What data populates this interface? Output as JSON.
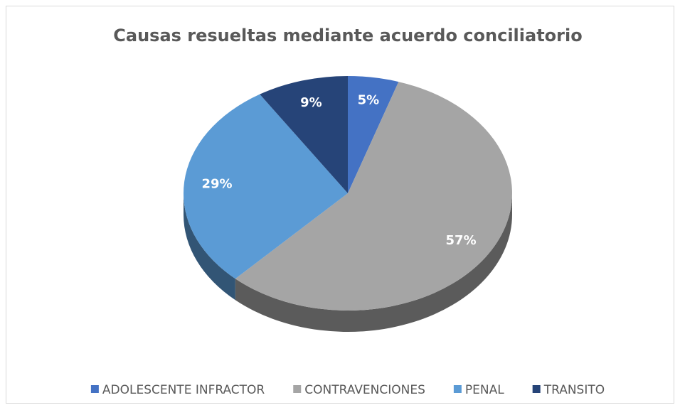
{
  "chart_data": {
    "type": "pie",
    "title": "Causas resueltas mediante acuerdo conciliatorio",
    "categories": [
      "ADOLESCENTE INFRACTOR",
      "CONTRAVENCIONES",
      "PENAL",
      "TRANSITO"
    ],
    "values": [
      5,
      57,
      29,
      9
    ],
    "value_labels": [
      "5%",
      "57%",
      "29%",
      "9%"
    ],
    "colors": [
      "#4472c4",
      "#a5a5a5",
      "#5b9bd5",
      "#264478"
    ],
    "legend": "bottom"
  }
}
